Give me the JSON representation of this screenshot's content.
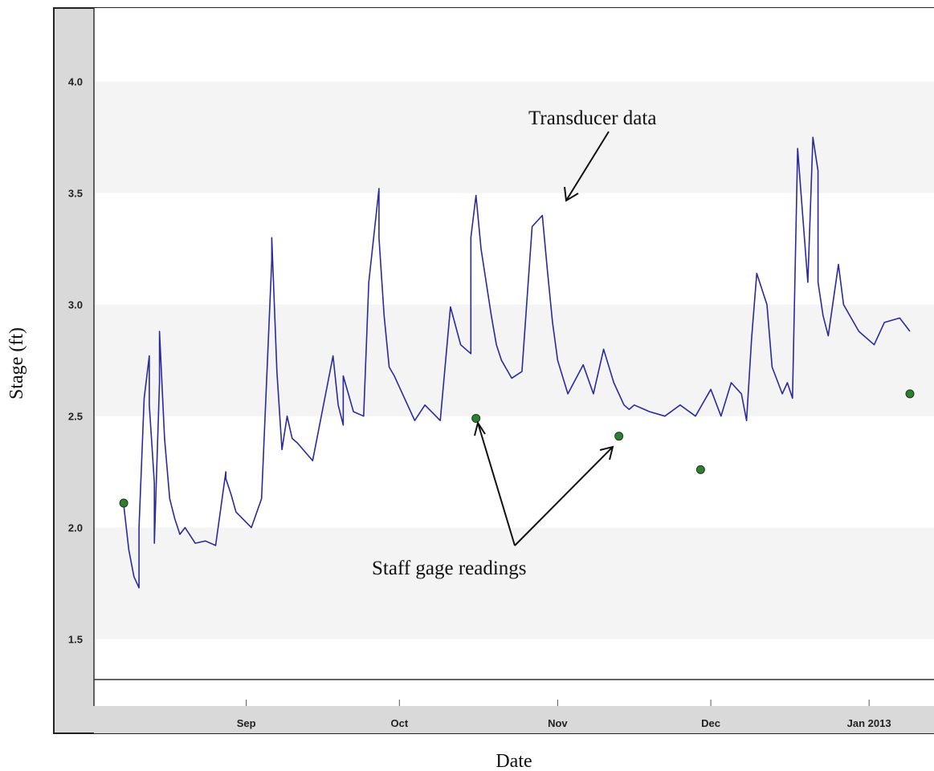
{
  "chart_data": {
    "type": "line",
    "xlabel": "Date",
    "ylabel": "Stage (ft)",
    "x_tick_labels": [
      "Sep",
      "Oct",
      "Nov",
      "Dec",
      "Jan 2013"
    ],
    "x_ticks": [
      "2012-09-01",
      "2012-10-01",
      "2012-11-01",
      "2012-12-01",
      "2013-01-01"
    ],
    "xlim": [
      "2012-08-05",
      "2013-01-09"
    ],
    "y_ticks": [
      1.5,
      2.0,
      2.5,
      3.0,
      3.5,
      4.0
    ],
    "y_tick_labels": [
      "1.5",
      "2.0",
      "2.5",
      "3.0",
      "3.5",
      "4.0"
    ],
    "ylim": [
      1.2,
      4.33
    ],
    "grid": "alternating horizontal bands",
    "annotations": [
      {
        "text": "Transducer data",
        "target": "transducer-series"
      },
      {
        "text": "Staff gage readings",
        "target": "staff-gage-series"
      }
    ],
    "series": [
      {
        "id": "transducer-series",
        "kind": "line",
        "color": "#2a2a9c",
        "x": [
          "2012-08-08",
          "2012-08-09",
          "2012-08-10",
          "2012-08-11",
          "2012-08-11",
          "2012-08-12",
          "2012-08-13",
          "2012-08-13",
          "2012-08-14",
          "2012-08-14",
          "2012-08-15",
          "2012-08-15",
          "2012-08-16",
          "2012-08-17",
          "2012-08-18",
          "2012-08-19",
          "2012-08-20",
          "2012-08-22",
          "2012-08-24",
          "2012-08-26",
          "2012-08-28",
          "2012-08-28",
          "2012-08-29",
          "2012-08-30",
          "2012-09-02",
          "2012-09-04",
          "2012-09-06",
          "2012-09-06",
          "2012-09-07",
          "2012-09-08",
          "2012-09-09",
          "2012-09-10",
          "2012-09-11",
          "2012-09-14",
          "2012-09-18",
          "2012-09-19",
          "2012-09-20",
          "2012-09-20",
          "2012-09-21",
          "2012-09-22",
          "2012-09-24",
          "2012-09-25",
          "2012-09-27",
          "2012-09-27",
          "2012-09-28",
          "2012-09-29",
          "2012-09-30",
          "2012-10-02",
          "2012-10-04",
          "2012-10-06",
          "2012-10-09",
          "2012-10-11",
          "2012-10-13",
          "2012-10-15",
          "2012-10-15",
          "2012-10-16",
          "2012-10-17",
          "2012-10-19",
          "2012-10-20",
          "2012-10-21",
          "2012-10-23",
          "2012-10-25",
          "2012-10-27",
          "2012-10-29",
          "2012-10-30",
          "2012-10-31",
          "2012-11-01",
          "2012-11-03",
          "2012-11-06",
          "2012-11-08",
          "2012-11-10",
          "2012-11-12",
          "2012-11-14",
          "2012-11-15",
          "2012-11-16",
          "2012-11-19",
          "2012-11-22",
          "2012-11-25",
          "2012-11-28",
          "2012-12-01",
          "2012-12-03",
          "2012-12-05",
          "2012-12-07",
          "2012-12-08",
          "2012-12-09",
          "2012-12-10",
          "2012-12-12",
          "2012-12-13",
          "2012-12-15",
          "2012-12-16",
          "2012-12-17",
          "2012-12-18",
          "2012-12-19",
          "2012-12-20",
          "2012-12-21",
          "2012-12-22",
          "2012-12-22",
          "2012-12-23",
          "2012-12-24",
          "2012-12-26",
          "2012-12-27",
          "2012-12-30",
          "2013-01-02",
          "2013-01-04",
          "2013-01-07",
          "2013-01-09"
        ],
        "y": [
          2.1,
          1.9,
          1.78,
          1.73,
          2.0,
          2.58,
          2.77,
          2.55,
          2.2,
          1.93,
          2.65,
          2.88,
          2.4,
          2.13,
          2.04,
          1.97,
          2.0,
          1.93,
          1.94,
          1.92,
          2.25,
          2.22,
          2.15,
          2.07,
          2.0,
          2.13,
          3.2,
          3.3,
          2.7,
          2.35,
          2.5,
          2.4,
          2.38,
          2.3,
          2.77,
          2.55,
          2.46,
          2.68,
          2.6,
          2.52,
          2.5,
          3.1,
          3.52,
          3.3,
          2.95,
          2.72,
          2.68,
          2.58,
          2.48,
          2.55,
          2.48,
          2.99,
          2.82,
          2.78,
          3.3,
          3.49,
          3.25,
          2.95,
          2.82,
          2.75,
          2.67,
          2.7,
          3.35,
          3.4,
          3.15,
          2.92,
          2.75,
          2.6,
          2.73,
          2.6,
          2.8,
          2.65,
          2.55,
          2.53,
          2.55,
          2.52,
          2.5,
          2.55,
          2.5,
          2.62,
          2.5,
          2.65,
          2.6,
          2.48,
          2.85,
          3.14,
          3.0,
          2.72,
          2.6,
          2.65,
          2.58,
          3.7,
          3.4,
          3.1,
          3.75,
          3.6,
          3.1,
          2.95,
          2.86,
          3.18,
          3.0,
          2.88,
          2.82,
          2.92,
          2.94,
          2.88
        ]
      },
      {
        "id": "staff-gage-series",
        "kind": "points",
        "color": "#2e7d32",
        "x": [
          "2012-08-08",
          "2012-10-16",
          "2012-11-13",
          "2012-11-29",
          "2013-01-09"
        ],
        "y": [
          2.11,
          2.49,
          2.41,
          2.26,
          2.6
        ]
      }
    ]
  }
}
